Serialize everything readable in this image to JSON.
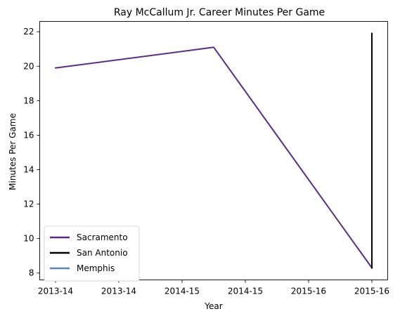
{
  "chart_data": {
    "type": "line",
    "title": "Ray McCallum Jr. Career Minutes Per Game",
    "xlabel": "Year",
    "ylabel": "Minutes Per Game",
    "x_tick_labels": [
      "2013-14",
      "2013-14",
      "2014-15",
      "2014-15",
      "2015-16",
      "2015-16"
    ],
    "x_points": [
      "2013-14",
      "2014-15",
      "2015-16"
    ],
    "ylim": [
      7.6,
      22.6
    ],
    "y_ticks": [
      8,
      10,
      12,
      14,
      16,
      18,
      20,
      22
    ],
    "grid": false,
    "legend_position": "lower-left",
    "series": [
      {
        "name": "Sacramento",
        "color": "#5b2c83",
        "points": [
          {
            "x": "2013-14",
            "y": 19.9
          },
          {
            "x": "2014-15",
            "y": 21.1
          },
          {
            "x": "2015-16",
            "y": 8.3
          }
        ]
      },
      {
        "name": "San Antonio",
        "color": "#000000",
        "points": [
          {
            "x": "2015-16",
            "y": 8.3
          },
          {
            "x": "2015-16",
            "y": 21.9
          }
        ]
      },
      {
        "name": "Memphis",
        "color": "#5a84b8",
        "points": []
      }
    ]
  }
}
